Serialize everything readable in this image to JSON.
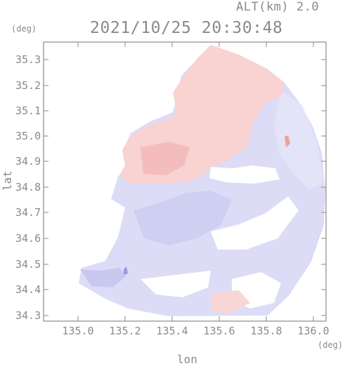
{
  "header": {
    "altitude_label": "ALT(km) 2.0",
    "timestamp": "2021/10/25 20:30:48"
  },
  "axes": {
    "y_unit": "(deg)",
    "x_unit": "(deg)",
    "xlabel": "lon",
    "ylabel": "lat",
    "x_ticks": [
      "135.0",
      "135.2",
      "135.4",
      "135.6",
      "135.8",
      "136.0"
    ],
    "y_ticks": [
      "35.3",
      "35.2",
      "35.1",
      "35.0",
      "34.9",
      "34.8",
      "34.7",
      "34.6",
      "34.5",
      "34.4",
      "34.3"
    ]
  },
  "colors": {
    "positive": "#f8cccc",
    "positive_strong": "#f1b0b0",
    "negative": "#dcdcf6",
    "negative_strong": "#c2c2ee",
    "axis": "#8a8a8a"
  }
}
